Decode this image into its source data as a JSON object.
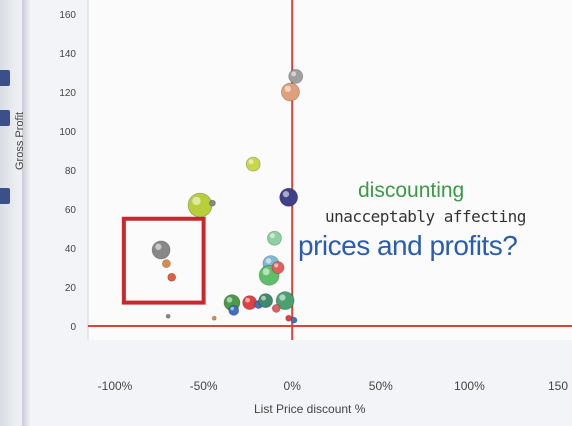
{
  "colors": {
    "background": "#f3f4f7",
    "reference_line": "#e0403a",
    "highlight_box": "#c8282c",
    "text_green": "#3a9a45",
    "text_blue": "#2a5db0"
  },
  "overlay": {
    "line1": "discounting",
    "line2": "unacceptably affecting",
    "line3": "prices and profits?"
  },
  "chart_data": {
    "type": "scatter",
    "xlabel": "List Price discount %",
    "ylabel": "Gross Profit",
    "x_ticks": [
      "-100%",
      "-50%",
      "0%",
      "50%",
      "100%",
      "150"
    ],
    "y_ticks": [
      "0",
      "20",
      "40",
      "60",
      "80",
      "100",
      "120",
      "140",
      "160"
    ],
    "xlim": [
      -100,
      150
    ],
    "ylim": [
      0,
      160
    ],
    "reference_lines": {
      "x": 0,
      "y": 0
    },
    "highlight_region": {
      "x": [
        -95,
        -50
      ],
      "y": [
        12,
        55
      ]
    },
    "points": [
      {
        "x": 2,
        "y": 128,
        "size": 7,
        "color": "#a0a0a0"
      },
      {
        "x": -1,
        "y": 120,
        "size": 9,
        "color": "#e0a07a"
      },
      {
        "x": -22,
        "y": 83,
        "size": 7,
        "color": "#c8d84a"
      },
      {
        "x": -52,
        "y": 62,
        "size": 12,
        "color": "#b8cf3a"
      },
      {
        "x": -45,
        "y": 63,
        "size": 3,
        "color": "#888888"
      },
      {
        "x": -2,
        "y": 66,
        "size": 9,
        "color": "#3f3f8a"
      },
      {
        "x": -10,
        "y": 45,
        "size": 7,
        "color": "#8fd0a0"
      },
      {
        "x": -12,
        "y": 32,
        "size": 8,
        "color": "#7fb9d8"
      },
      {
        "x": -13,
        "y": 26,
        "size": 10,
        "color": "#5fbf68"
      },
      {
        "x": -8,
        "y": 30,
        "size": 6,
        "color": "#e06060"
      },
      {
        "x": -74,
        "y": 39,
        "size": 9,
        "color": "#888888"
      },
      {
        "x": -71,
        "y": 32,
        "size": 4,
        "color": "#e08a4a"
      },
      {
        "x": -68,
        "y": 25,
        "size": 4,
        "color": "#e06040"
      },
      {
        "x": -34,
        "y": 12,
        "size": 8,
        "color": "#4a9a4a"
      },
      {
        "x": -33,
        "y": 8,
        "size": 5,
        "color": "#3f6fbf"
      },
      {
        "x": -24,
        "y": 12,
        "size": 7,
        "color": "#e04040"
      },
      {
        "x": -19,
        "y": 11,
        "size": 4,
        "color": "#3f6fbf"
      },
      {
        "x": -15,
        "y": 13,
        "size": 7,
        "color": "#3f8a6a"
      },
      {
        "x": -4,
        "y": 13,
        "size": 9,
        "color": "#4aa070"
      },
      {
        "x": -9,
        "y": 9,
        "size": 4,
        "color": "#e06060"
      },
      {
        "x": -2,
        "y": 4,
        "size": 3,
        "color": "#e04040"
      },
      {
        "x": 1,
        "y": 3,
        "size": 3,
        "color": "#3f6fbf"
      },
      {
        "x": -44,
        "y": 4,
        "size": 2,
        "color": "#e08a4a"
      },
      {
        "x": -70,
        "y": 5,
        "size": 2,
        "color": "#888888"
      }
    ]
  }
}
